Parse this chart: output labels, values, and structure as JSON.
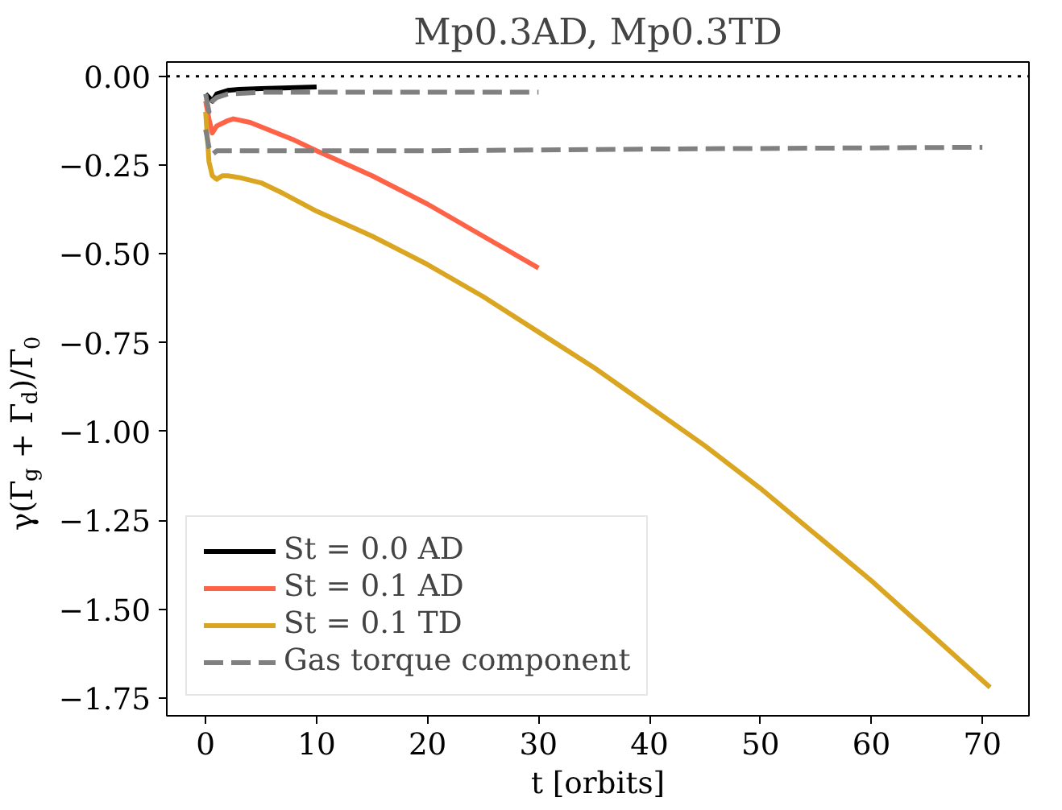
{
  "chart_data": {
    "type": "line",
    "title": "Mp0.3AD, Mp0.3TD",
    "xlabel": "t [orbits]",
    "ylabel": "γ(Γ$_{g}$ + Γ$_{d}$)/Γ$_{0}$",
    "xlim": [
      -3.5,
      74.2
    ],
    "ylim": [
      -1.8,
      0.04
    ],
    "xticks": [
      0,
      10,
      20,
      30,
      40,
      50,
      60,
      70
    ],
    "yticks": [
      {
        "value": 0,
        "label": "0.00"
      },
      {
        "value": -0.25,
        "label": "−0.25"
      },
      {
        "value": -0.5,
        "label": "−0.50"
      },
      {
        "value": -0.75,
        "label": "−0.75"
      },
      {
        "value": -1,
        "label": "−1.00"
      },
      {
        "value": -1.25,
        "label": "−1.25"
      },
      {
        "value": -1.5,
        "label": "−1.50"
      },
      {
        "value": -1.75,
        "label": "−1.75"
      }
    ],
    "grid": false,
    "legend": "bottom left",
    "ref_lines": [
      {
        "axis": "y",
        "value": 0,
        "color": "#000000",
        "line_style": "dotted"
      }
    ],
    "series": [
      {
        "name": "St = 0.0 AD",
        "color": "#000000",
        "line_style": "solid",
        "x": [
          0,
          0.3,
          0.6,
          1,
          2,
          3,
          5,
          7,
          10
        ],
        "values": [
          -0.05,
          -0.06,
          -0.07,
          -0.05,
          -0.04,
          -0.037,
          -0.035,
          -0.033,
          -0.03
        ]
      },
      {
        "name": "St = 0.1 AD",
        "color": "#ff6347",
        "line_style": "solid",
        "x": [
          0,
          0.3,
          0.6,
          1,
          2,
          2.5,
          4,
          6,
          8,
          10,
          15,
          20,
          25,
          30
        ],
        "values": [
          -0.07,
          -0.12,
          -0.16,
          -0.14,
          -0.125,
          -0.12,
          -0.13,
          -0.155,
          -0.18,
          -0.21,
          -0.28,
          -0.36,
          -0.45,
          -0.54
        ]
      },
      {
        "name": "St = 0.1 TD",
        "color": "#daa520",
        "line_style": "solid",
        "x": [
          0,
          0.3,
          0.6,
          1,
          1.5,
          2,
          3,
          5,
          7,
          10,
          15,
          20,
          25,
          30,
          35,
          40,
          45,
          50,
          55,
          60,
          65,
          70.7
        ],
        "values": [
          -0.1,
          -0.24,
          -0.28,
          -0.29,
          -0.28,
          -0.28,
          -0.285,
          -0.3,
          -0.33,
          -0.38,
          -0.45,
          -0.53,
          -0.62,
          -0.72,
          -0.82,
          -0.93,
          -1.04,
          -1.16,
          -1.29,
          -1.42,
          -1.56,
          -1.72
        ]
      },
      {
        "name": "Gas torque component",
        "color": "#808080",
        "line_style": "dashed",
        "x": [
          0,
          0.3,
          0.6,
          1,
          2,
          5,
          10,
          20,
          30
        ],
        "values": [
          -0.05,
          -0.1,
          -0.07,
          -0.06,
          -0.05,
          -0.045,
          -0.045,
          -0.045,
          -0.045
        ]
      },
      {
        "color": "#808080",
        "line_style": "dashed",
        "x": [
          0,
          0.3,
          0.6,
          1,
          2,
          5,
          10,
          20,
          40,
          70
        ],
        "values": [
          -0.15,
          -0.2,
          -0.22,
          -0.21,
          -0.21,
          -0.21,
          -0.21,
          -0.21,
          -0.205,
          -0.2
        ]
      }
    ]
  }
}
